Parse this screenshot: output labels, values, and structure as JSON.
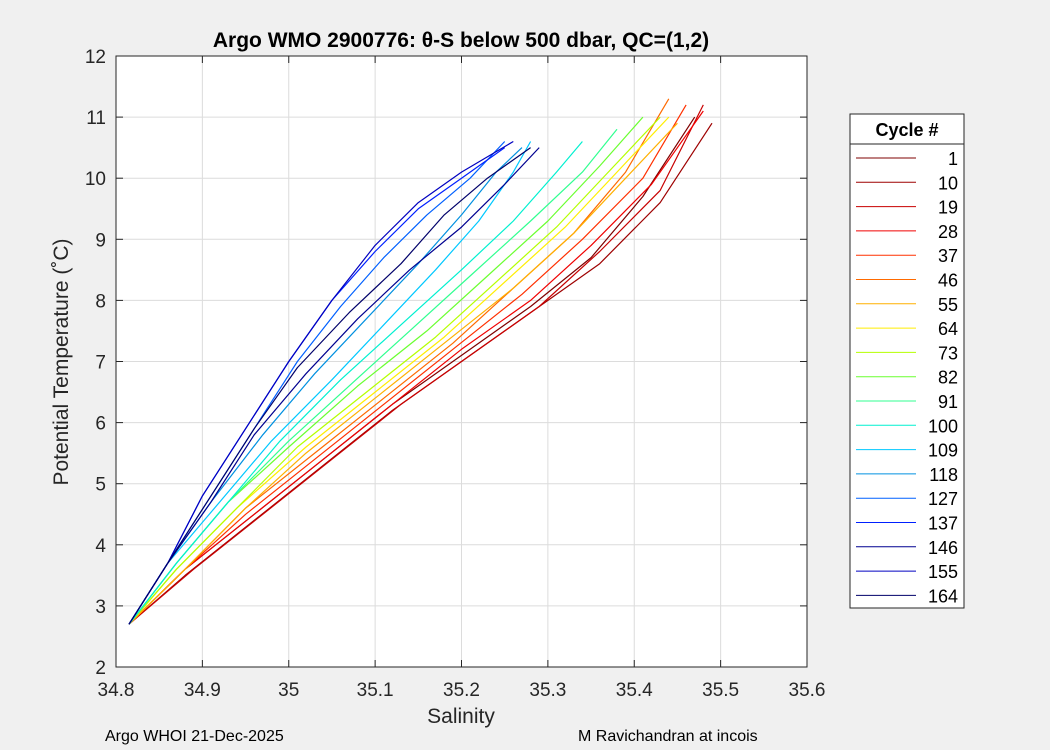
{
  "chart_data": {
    "type": "line",
    "title": "Argo WMO 2900776: θ-S below 500 dbar,  QC=(1,2)",
    "xlabel": "Salinity",
    "ylabel": "Potential Temperature (˚C)",
    "xlim": [
      34.8,
      35.6
    ],
    "ylim": [
      2,
      12
    ],
    "xticks": [
      "34.8",
      "34.9",
      "35",
      "35.1",
      "35.2",
      "35.3",
      "35.4",
      "35.5",
      "35.6"
    ],
    "yticks": [
      "2",
      "3",
      "4",
      "5",
      "6",
      "7",
      "8",
      "9",
      "10",
      "11",
      "12"
    ],
    "grid": true,
    "legend_title": "Cycle #",
    "legend_position": "outside-right",
    "series": [
      {
        "name": "1",
        "color": "#7f0000",
        "salinity": [
          34.815,
          34.88,
          34.96,
          35.04,
          35.12,
          35.2,
          35.28,
          35.35,
          35.41,
          35.47
        ],
        "theta": [
          2.7,
          3.6,
          4.5,
          5.4,
          6.3,
          7.1,
          7.9,
          8.7,
          9.7,
          11.0
        ]
      },
      {
        "name": "10",
        "color": "#9e0000",
        "salinity": [
          34.815,
          34.88,
          34.96,
          35.04,
          35.12,
          35.2,
          35.28,
          35.36,
          35.43,
          35.49
        ],
        "theta": [
          2.7,
          3.5,
          4.4,
          5.3,
          6.2,
          7.0,
          7.8,
          8.6,
          9.6,
          10.9
        ]
      },
      {
        "name": "19",
        "color": "#c80000",
        "salinity": [
          34.815,
          34.89,
          34.97,
          35.05,
          35.13,
          35.21,
          35.29,
          35.36,
          35.43,
          35.48
        ],
        "theta": [
          2.7,
          3.6,
          4.5,
          5.4,
          6.3,
          7.1,
          7.9,
          8.8,
          9.8,
          11.2
        ]
      },
      {
        "name": "28",
        "color": "#f00000",
        "salinity": [
          34.815,
          34.88,
          34.96,
          35.04,
          35.12,
          35.2,
          35.28,
          35.35,
          35.42,
          35.48
        ],
        "theta": [
          2.7,
          3.6,
          4.5,
          5.4,
          6.3,
          7.2,
          8.0,
          8.9,
          9.9,
          11.1
        ]
      },
      {
        "name": "37",
        "color": "#ff3000",
        "salinity": [
          34.815,
          34.88,
          34.95,
          35.03,
          35.11,
          35.19,
          35.27,
          35.34,
          35.41,
          35.46
        ],
        "theta": [
          2.7,
          3.6,
          4.5,
          5.4,
          6.3,
          7.2,
          8.1,
          9.0,
          10.0,
          11.2
        ]
      },
      {
        "name": "46",
        "color": "#ff6a00",
        "salinity": [
          34.815,
          34.88,
          34.95,
          35.03,
          35.11,
          35.19,
          35.26,
          35.33,
          35.39,
          35.44
        ],
        "theta": [
          2.7,
          3.6,
          4.6,
          5.5,
          6.4,
          7.3,
          8.2,
          9.1,
          10.1,
          11.3
        ]
      },
      {
        "name": "55",
        "color": "#ffb000",
        "salinity": [
          34.815,
          34.88,
          34.95,
          35.02,
          35.1,
          35.18,
          35.26,
          35.33,
          35.39,
          35.45
        ],
        "theta": [
          2.7,
          3.6,
          4.6,
          5.5,
          6.4,
          7.3,
          8.2,
          9.1,
          10.0,
          10.9
        ]
      },
      {
        "name": "64",
        "color": "#ffee00",
        "salinity": [
          34.815,
          34.87,
          34.94,
          35.02,
          35.1,
          35.18,
          35.25,
          35.32,
          35.38,
          35.44
        ],
        "theta": [
          2.7,
          3.6,
          4.6,
          5.6,
          6.5,
          7.4,
          8.3,
          9.2,
          10.1,
          11.0
        ]
      },
      {
        "name": "73",
        "color": "#b5ff00",
        "salinity": [
          34.815,
          34.87,
          34.94,
          35.01,
          35.09,
          35.17,
          35.24,
          35.31,
          35.37,
          35.43
        ],
        "theta": [
          2.7,
          3.6,
          4.6,
          5.6,
          6.5,
          7.4,
          8.3,
          9.2,
          10.1,
          11.0
        ]
      },
      {
        "name": "82",
        "color": "#6aff30",
        "salinity": [
          34.815,
          34.87,
          34.93,
          35.0,
          35.08,
          35.16,
          35.23,
          35.3,
          35.36,
          35.41
        ],
        "theta": [
          2.7,
          3.7,
          4.7,
          5.6,
          6.6,
          7.5,
          8.4,
          9.3,
          10.2,
          11.0
        ]
      },
      {
        "name": "91",
        "color": "#30ff90",
        "salinity": [
          34.815,
          34.87,
          34.93,
          35.0,
          35.07,
          35.14,
          35.21,
          35.28,
          35.34,
          35.38
        ],
        "theta": [
          2.7,
          3.7,
          4.7,
          5.7,
          6.6,
          7.5,
          8.4,
          9.3,
          10.1,
          10.8
        ]
      },
      {
        "name": "100",
        "color": "#00f0d0",
        "salinity": [
          34.815,
          34.87,
          34.93,
          34.99,
          35.06,
          35.13,
          35.2,
          35.26,
          35.31,
          35.34
        ],
        "theta": [
          2.7,
          3.7,
          4.7,
          5.7,
          6.7,
          7.6,
          8.5,
          9.3,
          10.1,
          10.6
        ]
      },
      {
        "name": "109",
        "color": "#00c8ff",
        "salinity": [
          34.815,
          34.86,
          34.92,
          34.98,
          35.05,
          35.11,
          35.17,
          35.22,
          35.26,
          35.28
        ],
        "theta": [
          2.7,
          3.7,
          4.7,
          5.7,
          6.7,
          7.6,
          8.5,
          9.3,
          10.1,
          10.6
        ]
      },
      {
        "name": "118",
        "color": "#0090e0",
        "salinity": [
          34.815,
          34.86,
          34.91,
          34.97,
          35.03,
          35.09,
          35.15,
          35.2,
          35.24,
          35.27
        ],
        "theta": [
          2.7,
          3.7,
          4.7,
          5.8,
          6.8,
          7.7,
          8.6,
          9.4,
          10.1,
          10.5
        ]
      },
      {
        "name": "127",
        "color": "#0060ff",
        "salinity": [
          34.815,
          34.86,
          34.91,
          34.96,
          35.01,
          35.06,
          35.11,
          35.16,
          35.21,
          35.25
        ],
        "theta": [
          2.7,
          3.7,
          4.8,
          5.9,
          7.0,
          7.9,
          8.7,
          9.4,
          10.0,
          10.6
        ]
      },
      {
        "name": "137",
        "color": "#0020ff",
        "salinity": [
          34.815,
          34.86,
          34.9,
          34.95,
          35.0,
          35.05,
          35.1,
          35.15,
          35.2,
          35.25
        ],
        "theta": [
          2.7,
          3.7,
          4.8,
          5.9,
          7.0,
          8.0,
          8.8,
          9.5,
          10.0,
          10.5
        ]
      },
      {
        "name": "146",
        "color": "#000090",
        "salinity": [
          34.815,
          34.86,
          34.91,
          34.96,
          35.02,
          35.08,
          35.14,
          35.2,
          35.25,
          35.29
        ],
        "theta": [
          2.7,
          3.7,
          4.7,
          5.8,
          6.8,
          7.7,
          8.5,
          9.2,
          9.9,
          10.5
        ]
      },
      {
        "name": "155",
        "color": "#0000c0",
        "salinity": [
          34.815,
          34.86,
          34.9,
          34.95,
          35.0,
          35.05,
          35.1,
          35.15,
          35.2,
          35.26
        ],
        "theta": [
          2.7,
          3.7,
          4.8,
          5.9,
          7.0,
          8.0,
          8.9,
          9.6,
          10.1,
          10.6
        ]
      },
      {
        "name": "164",
        "color": "#00006a",
        "salinity": [
          34.815,
          34.86,
          34.91,
          34.96,
          35.01,
          35.07,
          35.13,
          35.18,
          35.23,
          35.28
        ],
        "theta": [
          2.7,
          3.7,
          4.8,
          5.9,
          6.9,
          7.8,
          8.6,
          9.4,
          10.0,
          10.5
        ]
      }
    ]
  },
  "footer": {
    "left": "Argo WHOI 21-Dec-2025",
    "right": "M Ravichandran at incois"
  }
}
